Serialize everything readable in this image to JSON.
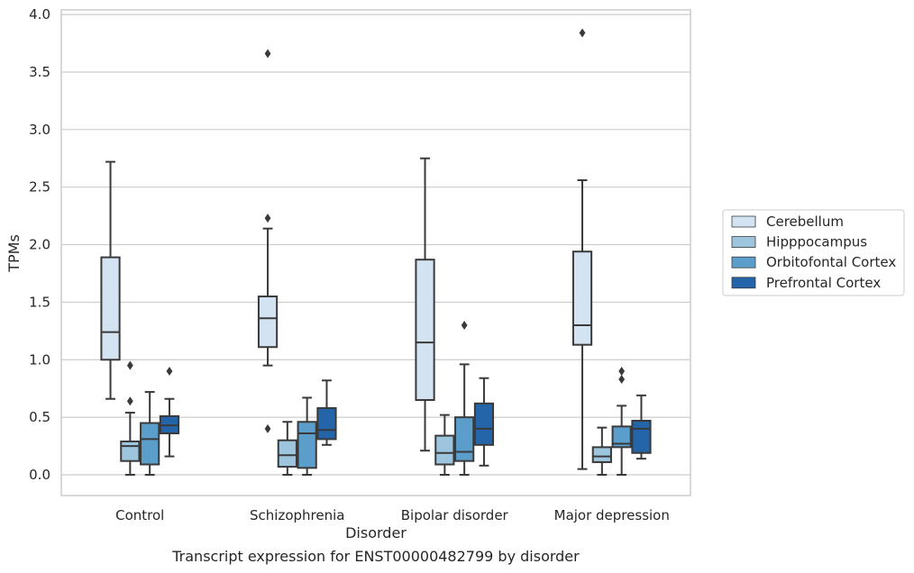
{
  "chart_data": {
    "type": "boxplot",
    "title": "",
    "caption": "Transcript expression for ENST00000482799 by disorder",
    "xlabel": "Disorder",
    "ylabel": "TPMs",
    "ylim": [
      -0.18,
      4.04
    ],
    "yticks": [
      0.0,
      0.5,
      1.0,
      1.5,
      2.0,
      2.5,
      3.0,
      3.5,
      4.0
    ],
    "ytick_labels": [
      "0.0",
      "0.5",
      "1.0",
      "1.5",
      "2.0",
      "2.5",
      "3.0",
      "3.5",
      "4.0"
    ],
    "grid": "horizontal",
    "legend_position": "right",
    "categories": [
      "Control",
      "Schizophrenia",
      "Bipolar disorder",
      "Major depression"
    ],
    "series": [
      {
        "name": "Cerebellum",
        "color": "#d4e3f2",
        "boxes": [
          {
            "whisker_low": 0.66,
            "q1": 1.0,
            "median": 1.24,
            "q3": 1.89,
            "whisker_high": 2.72,
            "outliers": []
          },
          {
            "whisker_low": 0.95,
            "q1": 1.11,
            "median": 1.36,
            "q3": 1.55,
            "whisker_high": 2.14,
            "outliers": [
              0.4,
              2.23,
              3.66
            ]
          },
          {
            "whisker_low": 0.21,
            "q1": 0.65,
            "median": 1.15,
            "q3": 1.87,
            "whisker_high": 2.75,
            "outliers": []
          },
          {
            "whisker_low": 0.05,
            "q1": 1.13,
            "median": 1.3,
            "q3": 1.94,
            "whisker_high": 2.56,
            "outliers": [
              3.84
            ]
          }
        ]
      },
      {
        "name": "Hipppocampus",
        "color": "#9ec5de",
        "boxes": [
          {
            "whisker_low": 0.0,
            "q1": 0.12,
            "median": 0.25,
            "q3": 0.29,
            "whisker_high": 0.54,
            "outliers": [
              0.64,
              0.95
            ]
          },
          {
            "whisker_low": 0.0,
            "q1": 0.07,
            "median": 0.17,
            "q3": 0.3,
            "whisker_high": 0.46,
            "outliers": []
          },
          {
            "whisker_low": 0.0,
            "q1": 0.09,
            "median": 0.19,
            "q3": 0.34,
            "whisker_high": 0.52,
            "outliers": []
          },
          {
            "whisker_low": 0.0,
            "q1": 0.11,
            "median": 0.16,
            "q3": 0.24,
            "whisker_high": 0.41,
            "outliers": []
          }
        ]
      },
      {
        "name": "Orbitofontal Cortex",
        "color": "#5b9dcb",
        "boxes": [
          {
            "whisker_low": 0.0,
            "q1": 0.09,
            "median": 0.31,
            "q3": 0.45,
            "whisker_high": 0.72,
            "outliers": []
          },
          {
            "whisker_low": 0.0,
            "q1": 0.06,
            "median": 0.36,
            "q3": 0.46,
            "whisker_high": 0.67,
            "outliers": []
          },
          {
            "whisker_low": 0.0,
            "q1": 0.12,
            "median": 0.2,
            "q3": 0.5,
            "whisker_high": 0.96,
            "outliers": [
              1.3
            ]
          },
          {
            "whisker_low": 0.0,
            "q1": 0.24,
            "median": 0.27,
            "q3": 0.42,
            "whisker_high": 0.6,
            "outliers": [
              0.83,
              0.9
            ]
          }
        ]
      },
      {
        "name": "Prefrontal Cortex",
        "color": "#2464a8",
        "boxes": [
          {
            "whisker_low": 0.16,
            "q1": 0.36,
            "median": 0.43,
            "q3": 0.51,
            "whisker_high": 0.66,
            "outliers": [
              0.9
            ]
          },
          {
            "whisker_low": 0.26,
            "q1": 0.31,
            "median": 0.39,
            "q3": 0.58,
            "whisker_high": 0.82,
            "outliers": []
          },
          {
            "whisker_low": 0.08,
            "q1": 0.26,
            "median": 0.4,
            "q3": 0.62,
            "whisker_high": 0.84,
            "outliers": []
          },
          {
            "whisker_low": 0.14,
            "q1": 0.19,
            "median": 0.4,
            "q3": 0.47,
            "whisker_high": 0.69,
            "outliers": []
          }
        ]
      }
    ]
  }
}
